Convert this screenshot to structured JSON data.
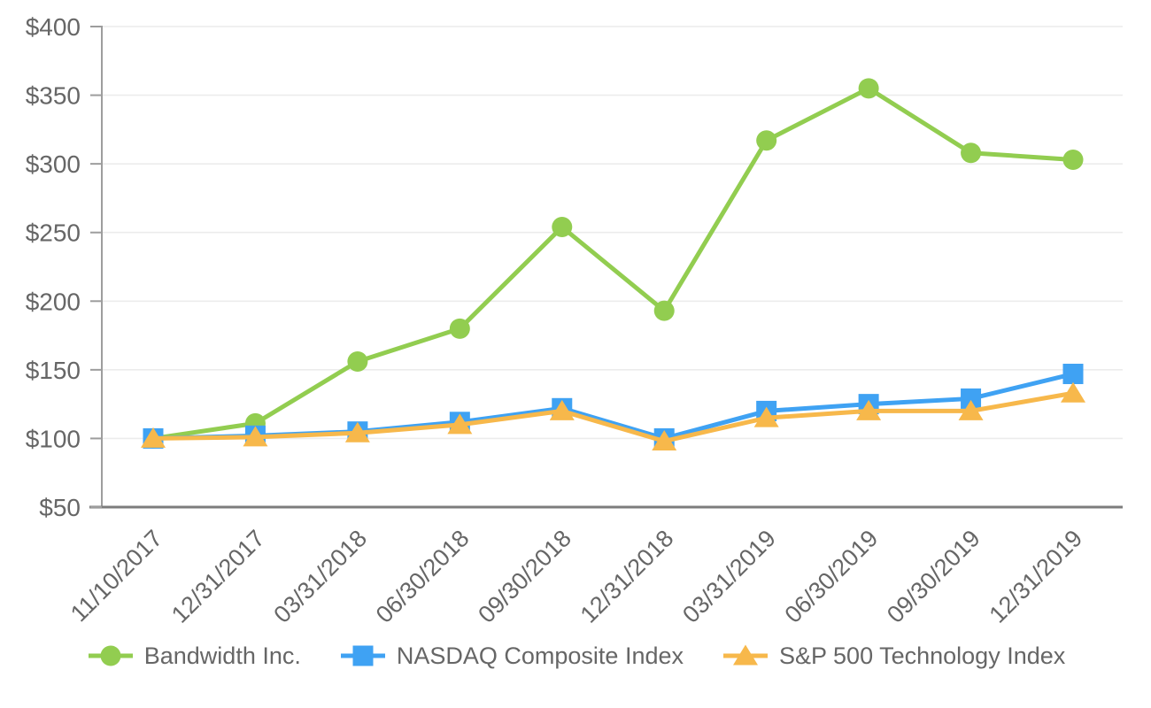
{
  "chart_data": {
    "type": "line",
    "title": "",
    "xlabel": "",
    "ylabel": "",
    "categories": [
      "11/10/2017",
      "12/31/2017",
      "03/31/2018",
      "06/30/2018",
      "09/30/2018",
      "12/31/2018",
      "03/31/2019",
      "06/30/2019",
      "09/30/2019",
      "12/31/2019"
    ],
    "series": [
      {
        "name": "Bandwidth Inc.",
        "marker": "circle",
        "color": "#92CD50",
        "values": [
          100,
          111,
          156,
          180,
          254,
          193,
          317,
          355,
          308,
          303
        ]
      },
      {
        "name": "NASDAQ Composite Index",
        "marker": "square",
        "color": "#3FA2F3",
        "values": [
          100,
          102,
          105,
          112,
          122,
          100,
          120,
          125,
          129,
          147
        ]
      },
      {
        "name": "S&P 500 Technology Index",
        "marker": "triangle",
        "color": "#F7B84B",
        "values": [
          100,
          101,
          104,
          110,
          120,
          98,
          115,
          120,
          120,
          133
        ]
      }
    ],
    "ylim": [
      50,
      400
    ],
    "ytick_step": 50,
    "ytick_prefix": "$",
    "grid": true,
    "legend_position": "bottom"
  },
  "colors": {
    "background": "#FFFFFF",
    "grid": "#ECECEC",
    "axis_left": "#9D9D9D",
    "axis_bottom": "#7D7D7D",
    "text": "#666666"
  }
}
